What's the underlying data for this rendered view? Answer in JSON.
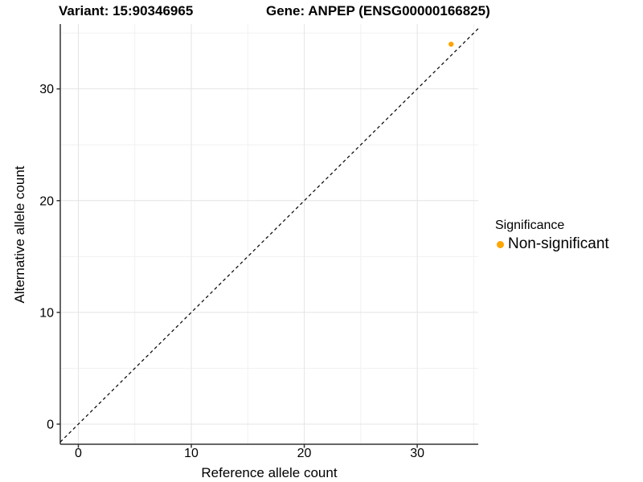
{
  "page": {
    "background": "#ffffff"
  },
  "chart_data": {
    "type": "scatter",
    "title_left": "Variant: 15:90346965",
    "title_right": "Gene: ANPEP (ENSG00000166825)",
    "xlabel": "Reference allele count",
    "ylabel": "Alternative allele count",
    "xlim": [
      -1.6,
      35.4
    ],
    "ylim": [
      -1.8,
      35.8
    ],
    "xticks": [
      0,
      10,
      20,
      30
    ],
    "yticks": [
      0,
      10,
      20,
      30
    ],
    "minor_xticks": [
      5,
      15,
      25,
      35
    ],
    "minor_yticks": [
      5,
      15,
      25,
      35
    ],
    "grid": {
      "major_color": "#e4e4e4",
      "minor_color": "#f1f1f1",
      "background": "#ffffff"
    },
    "axis_color": "#333333",
    "text_color": "#000000",
    "identity_line": {
      "slope": 1,
      "intercept": 0,
      "style": "dashed",
      "color": "#000000"
    },
    "series": [
      {
        "name": "Non-significant",
        "color": "#FFA500",
        "points": [
          {
            "x": 33,
            "y": 34
          }
        ]
      }
    ],
    "legend": {
      "title": "Significance",
      "position": "right",
      "items": [
        {
          "label": "Non-significant",
          "color": "#FFA500"
        }
      ]
    }
  }
}
